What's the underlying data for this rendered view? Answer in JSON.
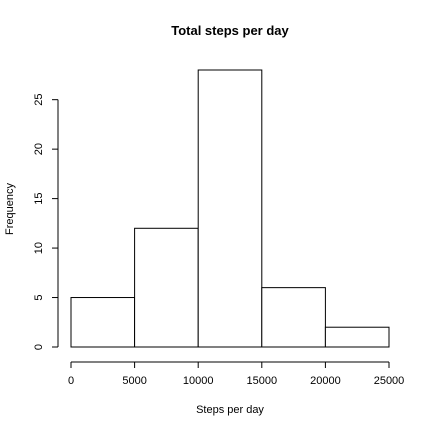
{
  "chart_data": {
    "type": "bar",
    "title": "Total steps per day",
    "xlabel": "Steps per day",
    "ylabel": "Frequency",
    "bins": [
      {
        "from": 0,
        "to": 5000,
        "count": 5
      },
      {
        "from": 5000,
        "to": 10000,
        "count": 12
      },
      {
        "from": 10000,
        "to": 15000,
        "count": 28
      },
      {
        "from": 15000,
        "to": 20000,
        "count": 6
      },
      {
        "from": 20000,
        "to": 25000,
        "count": 2
      }
    ],
    "x_ticks": [
      "0",
      "5000",
      "10000",
      "15000",
      "20000",
      "25000"
    ],
    "y_ticks": [
      "0",
      "5",
      "10",
      "15",
      "20",
      "25"
    ],
    "xlim": [
      0,
      25000
    ],
    "ylim": [
      0,
      28
    ],
    "grid": false,
    "bar_fill": "#ffffff",
    "bar_stroke": "#000000"
  }
}
